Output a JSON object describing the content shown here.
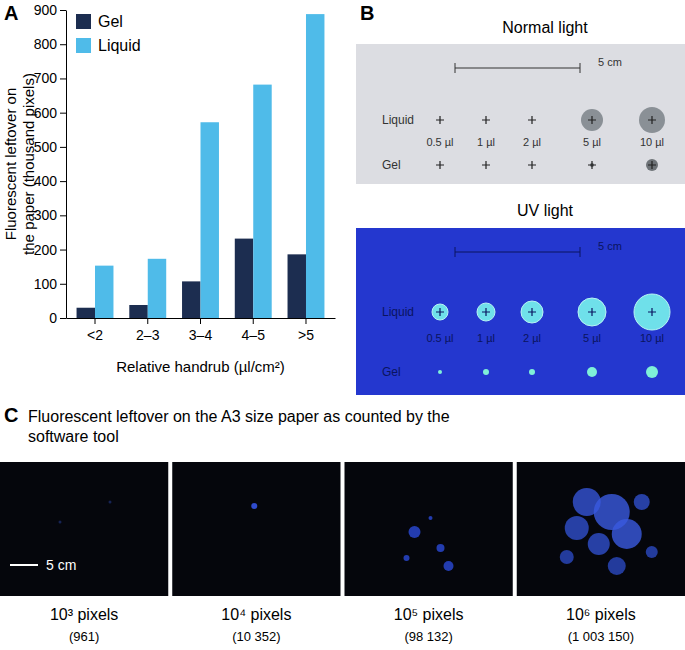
{
  "chart_data": {
    "type": "bar",
    "panel_label": "A",
    "x_label": "Relative handrub (µl/cm²)",
    "y_label": "Fluorescent leftover on the paper (thousand pixels)",
    "categories": [
      "<2",
      "2–3",
      "3–4",
      "4–5",
      ">5"
    ],
    "series": [
      {
        "name": "Gel",
        "color": "#1c2d50",
        "values": [
          30,
          38,
          107,
          232,
          186
        ]
      },
      {
        "name": "Liquid",
        "color": "#4fbbe9",
        "values": [
          153,
          173,
          572,
          682,
          888
        ]
      }
    ],
    "ylim": [
      0,
      900
    ],
    "yticks": [
      0,
      100,
      200,
      300,
      400,
      500,
      600,
      700,
      800,
      900
    ],
    "grid": false,
    "legend": "top-left"
  },
  "panel_b": {
    "label": "B",
    "normal_light": "Normal light",
    "uv_light": "UV light",
    "scale_label": "5 cm",
    "rows": [
      "Liquid",
      "Gel"
    ],
    "volumes": [
      "0.5 µl",
      "1 µl",
      "2 µl",
      "5 µl",
      "10 µl"
    ]
  },
  "panel_c": {
    "label": "C",
    "title": "Fluorescent leftover on the A3 size paper as counted by the software tool",
    "scale_label": "5 cm",
    "images": [
      {
        "label": "10³ pixels",
        "count": "(961)"
      },
      {
        "label": "10⁴ pixels",
        "count": "(10 352)"
      },
      {
        "label": "10⁵ pixels",
        "count": "(98 132)"
      },
      {
        "label": "10⁶ pixels",
        "count": "(1 003 150)"
      }
    ]
  }
}
